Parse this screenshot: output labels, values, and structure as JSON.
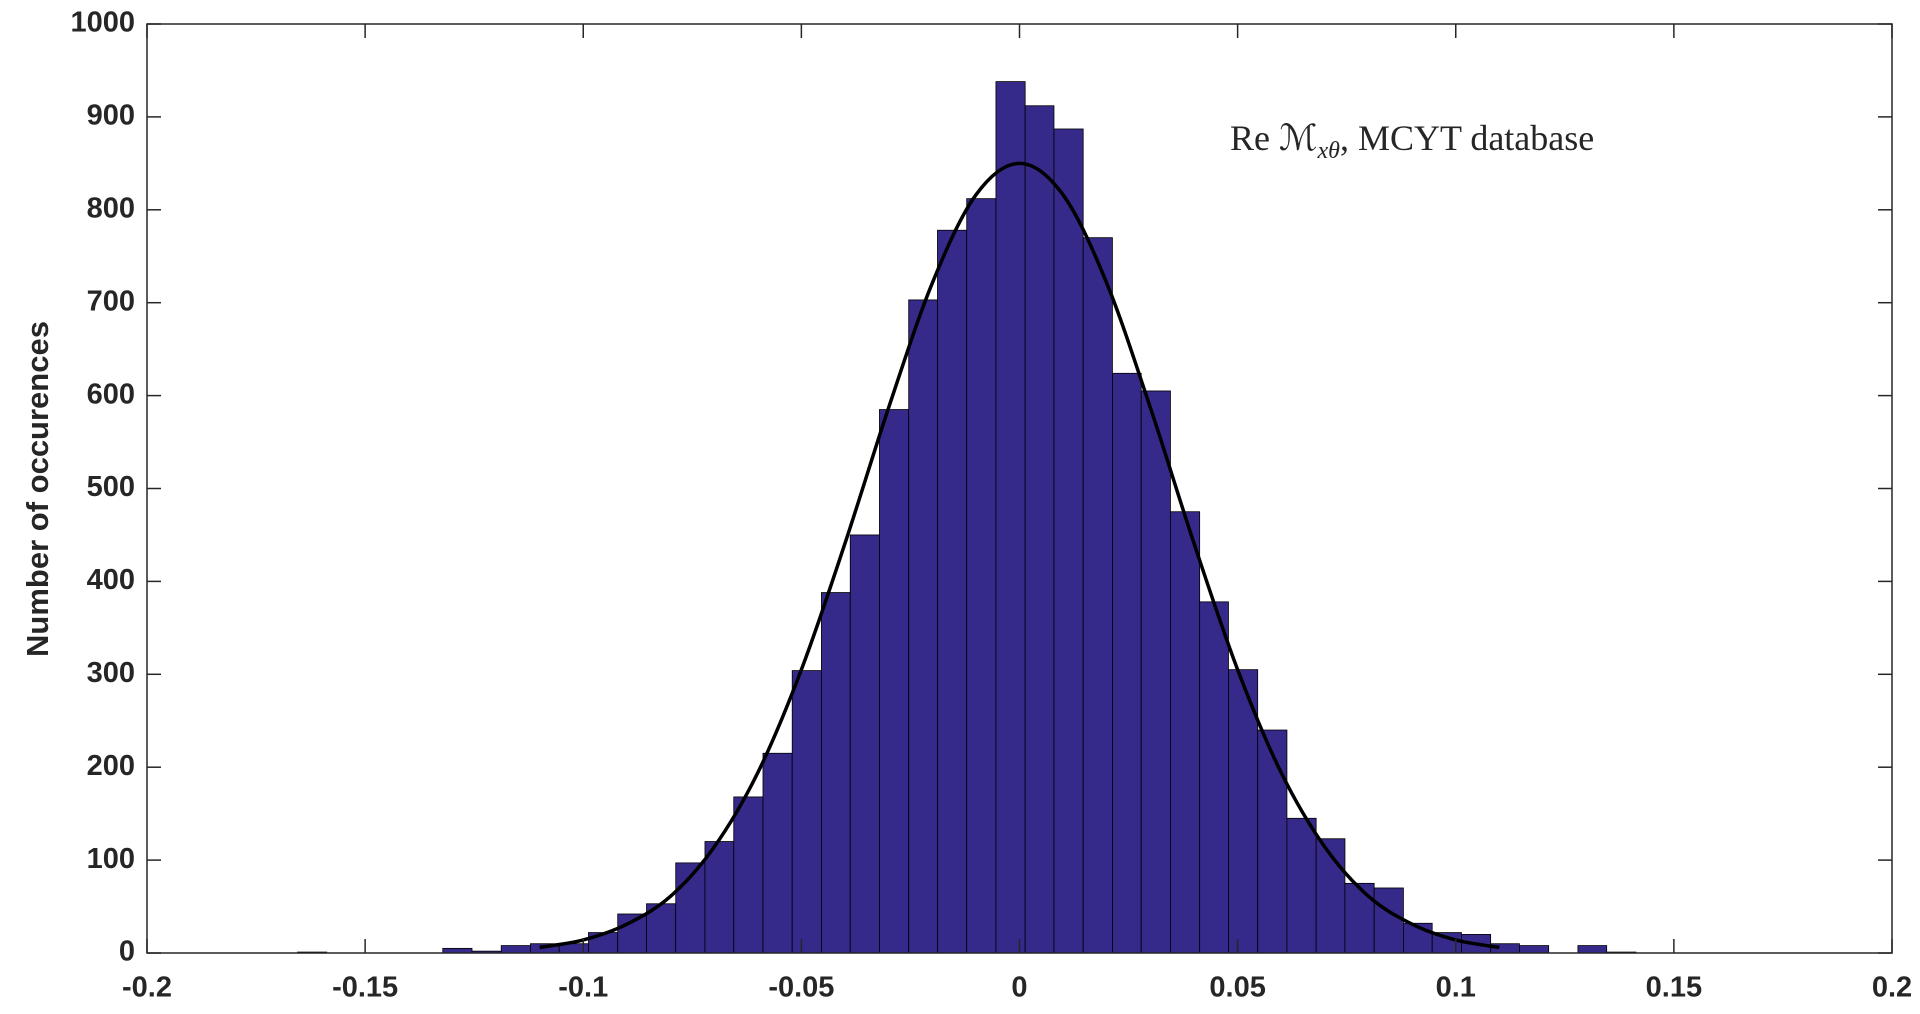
{
  "chart_data": {
    "type": "histogram",
    "ylabel": "Number of occurences",
    "annotation": {
      "text": "Re ℳ",
      "sub": "xθ",
      "tail": ", MCYT database"
    },
    "bins": [
      -0.1655,
      -0.1588,
      -0.1522,
      -0.1455,
      -0.1388,
      -0.1322,
      -0.1255,
      -0.1188,
      -0.1121,
      -0.1055,
      -0.0988,
      -0.0921,
      -0.0855,
      -0.0788,
      -0.0721,
      -0.0655,
      -0.0588,
      -0.0521,
      -0.0454,
      -0.0388,
      -0.0321,
      -0.0254,
      -0.0188,
      -0.0121,
      -0.0054,
      0.0013,
      0.0079,
      0.0146,
      0.0213,
      0.0279,
      0.0346,
      0.0413,
      0.0479,
      0.0546,
      0.0613,
      0.068,
      0.0746,
      0.0813,
      0.088,
      0.0946,
      0.1013,
      0.108,
      0.1146,
      0.1213,
      0.128,
      0.1346,
      0.1413
    ],
    "values": [
      1,
      0,
      0,
      0,
      0,
      5,
      2,
      8,
      10,
      10,
      22,
      42,
      53,
      97,
      120,
      168,
      215,
      304,
      388,
      450,
      585,
      703,
      778,
      812,
      938,
      912,
      887,
      770,
      624,
      605,
      475,
      378,
      305,
      240,
      145,
      123,
      75,
      70,
      32,
      22,
      20,
      10,
      8,
      0,
      8,
      1
    ],
    "color": "#35298a",
    "fit": {
      "type": "line",
      "color": "#000000",
      "x": [
        -0.11,
        -0.1,
        -0.09,
        -0.08,
        -0.07,
        -0.06,
        -0.05,
        -0.04,
        -0.03,
        -0.02,
        -0.01,
        0,
        0.01,
        0.02,
        0.03,
        0.04,
        0.05,
        0.06,
        0.07,
        0.08,
        0.09,
        0.1,
        0.11
      ],
      "values": [
        6,
        14,
        31,
        61,
        114,
        194,
        305,
        441,
        587,
        721,
        816,
        850,
        816,
        721,
        587,
        441,
        305,
        194,
        114,
        61,
        31,
        14,
        6
      ]
    },
    "xlim": [
      -0.2,
      0.2
    ],
    "xticks": [
      -0.2,
      -0.15,
      -0.1,
      -0.05,
      0,
      0.05,
      0.1,
      0.15,
      0.2
    ],
    "ylim": [
      0,
      1000
    ],
    "yticks": [
      0,
      100,
      200,
      300,
      400,
      500,
      600,
      700,
      800,
      900,
      1000
    ]
  }
}
